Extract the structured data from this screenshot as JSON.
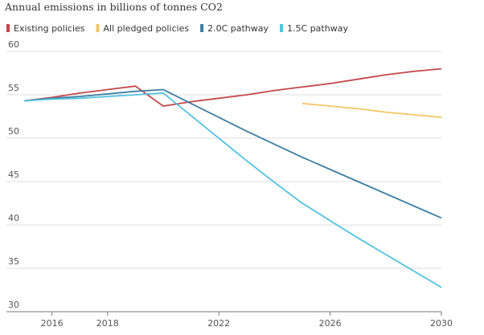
{
  "chart_data": {
    "type": "line",
    "title": "Annual emissions in billions of tonnes CO2",
    "x": [
      2015,
      2016,
      2017,
      2018,
      2019,
      2020,
      2021,
      2022,
      2023,
      2024,
      2025,
      2026,
      2027,
      2028,
      2029,
      2030
    ],
    "series": [
      {
        "name": "Existing policies",
        "color": "#c4474a",
        "values": [
          54.3,
          54.7,
          55.2,
          55.6,
          56.0,
          53.7,
          54.2,
          54.6,
          55.0,
          55.5,
          55.9,
          56.3,
          56.8,
          57.3,
          57.7,
          58.0
        ]
      },
      {
        "name": "All pledged policies",
        "color": "#f3c565",
        "values": [
          null,
          null,
          null,
          null,
          null,
          null,
          null,
          null,
          null,
          null,
          54.0,
          53.7,
          53.4,
          53.0,
          52.7,
          52.4
        ]
      },
      {
        "name": "2.0C pathway",
        "color": "#3d7fa3",
        "values": [
          54.3,
          54.6,
          54.8,
          55.1,
          55.4,
          55.6,
          54.0,
          52.4,
          50.8,
          49.3,
          47.8,
          46.4,
          45.0,
          43.6,
          42.2,
          40.8
        ]
      },
      {
        "name": "1.5C pathway",
        "color": "#52c2e0",
        "values": [
          54.3,
          54.5,
          54.6,
          54.8,
          55.0,
          55.2,
          52.6,
          50.0,
          47.4,
          44.9,
          42.5,
          40.5,
          38.5,
          36.6,
          34.7,
          32.8
        ]
      }
    ],
    "xlim": [
      2015,
      2030
    ],
    "xticks": [
      2016,
      2018,
      2022,
      2026,
      2030
    ],
    "ylim": [
      30,
      60
    ],
    "yticks": [
      30,
      35,
      40,
      45,
      50,
      55,
      60
    ],
    "grid": true
  }
}
